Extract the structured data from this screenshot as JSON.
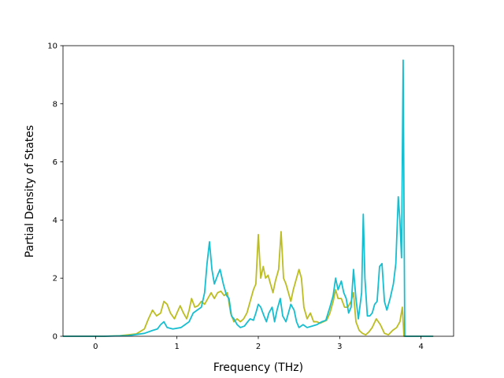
{
  "chart_data": {
    "type": "line",
    "title": "",
    "xlabel": "Frequency (THz)",
    "ylabel": "Partial Density of States",
    "xlim": [
      -0.4,
      4.4
    ],
    "ylim": [
      0,
      10
    ],
    "xticks": [
      0,
      1,
      2,
      3,
      4
    ],
    "yticks": [
      0,
      2,
      4,
      6,
      8,
      10
    ],
    "grid": false,
    "legend": "none",
    "series": [
      {
        "color": "#bcbd22",
        "points": [
          [
            -0.4,
            0
          ],
          [
            0.1,
            0
          ],
          [
            0.3,
            0.02
          ],
          [
            0.5,
            0.08
          ],
          [
            0.6,
            0.25
          ],
          [
            0.65,
            0.6
          ],
          [
            0.7,
            0.9
          ],
          [
            0.75,
            0.7
          ],
          [
            0.8,
            0.8
          ],
          [
            0.84,
            1.2
          ],
          [
            0.88,
            1.1
          ],
          [
            0.92,
            0.8
          ],
          [
            0.97,
            0.6
          ],
          [
            1.0,
            0.8
          ],
          [
            1.04,
            1.05
          ],
          [
            1.08,
            0.8
          ],
          [
            1.12,
            0.6
          ],
          [
            1.15,
            0.9
          ],
          [
            1.18,
            1.3
          ],
          [
            1.22,
            1.0
          ],
          [
            1.26,
            1.05
          ],
          [
            1.3,
            1.2
          ],
          [
            1.34,
            1.1
          ],
          [
            1.38,
            1.3
          ],
          [
            1.42,
            1.5
          ],
          [
            1.46,
            1.3
          ],
          [
            1.5,
            1.5
          ],
          [
            1.54,
            1.55
          ],
          [
            1.58,
            1.4
          ],
          [
            1.62,
            1.5
          ],
          [
            1.66,
            0.8
          ],
          [
            1.7,
            0.5
          ],
          [
            1.74,
            0.6
          ],
          [
            1.78,
            0.5
          ],
          [
            1.82,
            0.6
          ],
          [
            1.86,
            0.8
          ],
          [
            1.9,
            1.2
          ],
          [
            1.94,
            1.6
          ],
          [
            1.97,
            1.8
          ],
          [
            2.0,
            3.5
          ],
          [
            2.03,
            2.0
          ],
          [
            2.06,
            2.4
          ],
          [
            2.09,
            2.0
          ],
          [
            2.12,
            2.1
          ],
          [
            2.15,
            1.8
          ],
          [
            2.18,
            1.5
          ],
          [
            2.21,
            1.9
          ],
          [
            2.25,
            2.3
          ],
          [
            2.28,
            3.6
          ],
          [
            2.31,
            2.0
          ],
          [
            2.34,
            1.8
          ],
          [
            2.37,
            1.5
          ],
          [
            2.4,
            1.2
          ],
          [
            2.43,
            1.6
          ],
          [
            2.46,
            1.9
          ],
          [
            2.5,
            2.3
          ],
          [
            2.53,
            2.0
          ],
          [
            2.56,
            1.0
          ],
          [
            2.6,
            0.6
          ],
          [
            2.64,
            0.8
          ],
          [
            2.68,
            0.5
          ],
          [
            2.72,
            0.5
          ],
          [
            2.76,
            0.45
          ],
          [
            2.8,
            0.5
          ],
          [
            2.84,
            0.55
          ],
          [
            2.88,
            0.8
          ],
          [
            2.92,
            1.2
          ],
          [
            2.95,
            1.6
          ],
          [
            2.98,
            1.3
          ],
          [
            3.02,
            1.3
          ],
          [
            3.06,
            1.0
          ],
          [
            3.1,
            1.0
          ],
          [
            3.14,
            1.2
          ],
          [
            3.17,
            1.5
          ],
          [
            3.2,
            0.5
          ],
          [
            3.24,
            0.2
          ],
          [
            3.28,
            0.1
          ],
          [
            3.32,
            0.05
          ],
          [
            3.36,
            0.15
          ],
          [
            3.4,
            0.3
          ],
          [
            3.45,
            0.6
          ],
          [
            3.5,
            0.4
          ],
          [
            3.55,
            0.1
          ],
          [
            3.6,
            0.05
          ],
          [
            3.65,
            0.2
          ],
          [
            3.7,
            0.3
          ],
          [
            3.74,
            0.5
          ],
          [
            3.77,
            1.0
          ],
          [
            3.79,
            0.0
          ],
          [
            4.0,
            0
          ],
          [
            4.15,
            0
          ]
        ]
      },
      {
        "color": "#17becf",
        "points": [
          [
            -0.4,
            0
          ],
          [
            0.1,
            0
          ],
          [
            0.4,
            0.02
          ],
          [
            0.6,
            0.1
          ],
          [
            0.7,
            0.2
          ],
          [
            0.76,
            0.25
          ],
          [
            0.8,
            0.4
          ],
          [
            0.84,
            0.5
          ],
          [
            0.88,
            0.3
          ],
          [
            0.95,
            0.25
          ],
          [
            1.05,
            0.3
          ],
          [
            1.1,
            0.4
          ],
          [
            1.15,
            0.5
          ],
          [
            1.2,
            0.8
          ],
          [
            1.25,
            0.9
          ],
          [
            1.3,
            1.0
          ],
          [
            1.34,
            1.5
          ],
          [
            1.37,
            2.5
          ],
          [
            1.4,
            3.25
          ],
          [
            1.43,
            2.3
          ],
          [
            1.46,
            1.8
          ],
          [
            1.5,
            2.1
          ],
          [
            1.53,
            2.3
          ],
          [
            1.57,
            1.8
          ],
          [
            1.61,
            1.4
          ],
          [
            1.64,
            1.3
          ],
          [
            1.67,
            0.7
          ],
          [
            1.7,
            0.6
          ],
          [
            1.74,
            0.4
          ],
          [
            1.78,
            0.3
          ],
          [
            1.83,
            0.35
          ],
          [
            1.87,
            0.5
          ],
          [
            1.9,
            0.6
          ],
          [
            1.94,
            0.55
          ],
          [
            1.97,
            0.8
          ],
          [
            2.0,
            1.1
          ],
          [
            2.03,
            1.0
          ],
          [
            2.07,
            0.7
          ],
          [
            2.1,
            0.5
          ],
          [
            2.13,
            0.8
          ],
          [
            2.17,
            1.0
          ],
          [
            2.2,
            0.5
          ],
          [
            2.23,
            0.9
          ],
          [
            2.27,
            1.3
          ],
          [
            2.3,
            0.7
          ],
          [
            2.34,
            0.5
          ],
          [
            2.37,
            0.8
          ],
          [
            2.4,
            1.1
          ],
          [
            2.44,
            0.9
          ],
          [
            2.47,
            0.5
          ],
          [
            2.5,
            0.3
          ],
          [
            2.55,
            0.4
          ],
          [
            2.6,
            0.3
          ],
          [
            2.66,
            0.35
          ],
          [
            2.72,
            0.4
          ],
          [
            2.78,
            0.5
          ],
          [
            2.83,
            0.55
          ],
          [
            2.88,
            1.0
          ],
          [
            2.92,
            1.4
          ],
          [
            2.95,
            2.0
          ],
          [
            2.98,
            1.6
          ],
          [
            3.02,
            1.9
          ],
          [
            3.05,
            1.5
          ],
          [
            3.08,
            1.3
          ],
          [
            3.11,
            0.8
          ],
          [
            3.14,
            1.0
          ],
          [
            3.17,
            2.3
          ],
          [
            3.2,
            1.3
          ],
          [
            3.23,
            0.6
          ],
          [
            3.27,
            1.5
          ],
          [
            3.29,
            4.2
          ],
          [
            3.31,
            2.0
          ],
          [
            3.34,
            0.7
          ],
          [
            3.37,
            0.7
          ],
          [
            3.4,
            0.8
          ],
          [
            3.43,
            1.1
          ],
          [
            3.46,
            1.2
          ],
          [
            3.49,
            2.4
          ],
          [
            3.52,
            2.5
          ],
          [
            3.55,
            1.2
          ],
          [
            3.58,
            0.9
          ],
          [
            3.62,
            1.3
          ],
          [
            3.66,
            1.8
          ],
          [
            3.69,
            2.5
          ],
          [
            3.72,
            4.8
          ],
          [
            3.74,
            4.0
          ],
          [
            3.76,
            2.7
          ],
          [
            3.78,
            9.5
          ],
          [
            3.8,
            0.0
          ],
          [
            4.0,
            0
          ],
          [
            4.15,
            0
          ]
        ]
      }
    ]
  }
}
